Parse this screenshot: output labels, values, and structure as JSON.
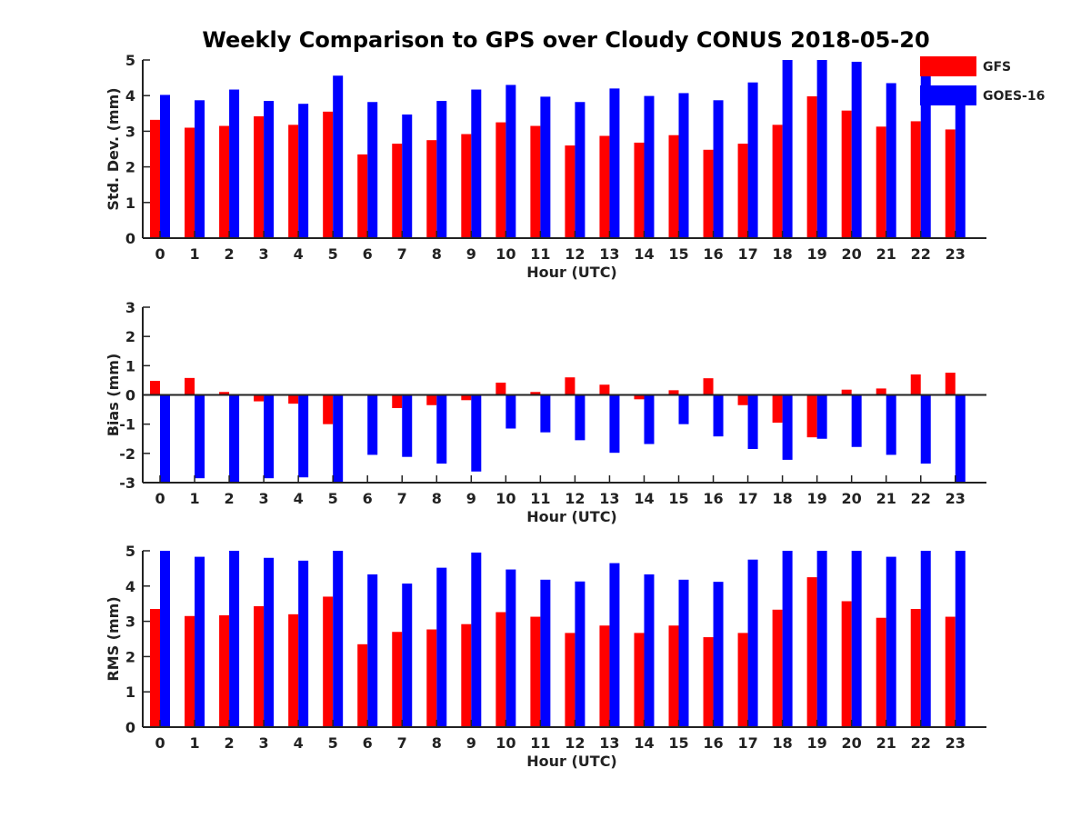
{
  "figure": {
    "title": "Weekly Comparison to GPS over Cloudy CONUS 2018-05-20"
  },
  "legend": {
    "placement": "top-right",
    "items": [
      {
        "label": "GFS",
        "color": "#ff0000"
      },
      {
        "label": "GOES-16",
        "color": "#0000ff"
      }
    ]
  },
  "chart_data": [
    {
      "type": "bar",
      "xlabel": "Hour (UTC)",
      "ylabel": "Std. Dev. (mm)",
      "ylim": [
        0,
        5
      ],
      "yticks": [
        0,
        1,
        2,
        3,
        4,
        5
      ],
      "categories": [
        "0",
        "1",
        "2",
        "3",
        "4",
        "5",
        "6",
        "7",
        "8",
        "9",
        "10",
        "11",
        "12",
        "13",
        "14",
        "15",
        "16",
        "17",
        "18",
        "19",
        "20",
        "21",
        "22",
        "23"
      ],
      "series": [
        {
          "name": "GFS",
          "color": "#ff0000",
          "values": [
            3.32,
            3.1,
            3.15,
            3.42,
            3.18,
            3.55,
            2.35,
            2.65,
            2.75,
            2.92,
            3.25,
            3.15,
            2.6,
            2.87,
            2.68,
            2.89,
            2.48,
            2.65,
            3.18,
            3.98,
            3.58,
            3.13,
            3.28,
            3.05
          ]
        },
        {
          "name": "GOES-16",
          "color": "#0000ff",
          "values": [
            4.02,
            3.87,
            4.17,
            3.85,
            3.77,
            4.56,
            3.82,
            3.47,
            3.85,
            4.17,
            4.3,
            3.97,
            3.82,
            4.2,
            3.99,
            4.07,
            3.87,
            4.37,
            5.0,
            5.0,
            4.95,
            4.35,
            4.6,
            3.8
          ]
        }
      ],
      "grid": false
    },
    {
      "type": "bar",
      "xlabel": "Hour (UTC)",
      "ylabel": "Bias (mm)",
      "ylim": [
        -3,
        3
      ],
      "yticks": [
        -3,
        -2,
        -1,
        0,
        1,
        2,
        3
      ],
      "categories": [
        "0",
        "1",
        "2",
        "3",
        "4",
        "5",
        "6",
        "7",
        "8",
        "9",
        "10",
        "11",
        "12",
        "13",
        "14",
        "15",
        "16",
        "17",
        "18",
        "19",
        "20",
        "21",
        "22",
        "23"
      ],
      "series": [
        {
          "name": "GFS",
          "color": "#ff0000",
          "values": [
            0.48,
            0.58,
            0.1,
            -0.22,
            -0.3,
            -1.0,
            0.0,
            -0.45,
            -0.35,
            -0.18,
            0.42,
            0.1,
            0.6,
            0.35,
            -0.15,
            0.16,
            0.57,
            -0.35,
            -0.95,
            -1.45,
            0.18,
            0.22,
            0.7,
            0.76
          ]
        },
        {
          "name": "GOES-16",
          "color": "#0000ff",
          "values": [
            -3.0,
            -2.85,
            -3.0,
            -2.85,
            -2.82,
            -3.0,
            -2.05,
            -2.12,
            -2.35,
            -2.62,
            -1.15,
            -1.28,
            -1.55,
            -1.98,
            -1.68,
            -1.0,
            -1.42,
            -1.85,
            -2.22,
            -1.5,
            -1.78,
            -2.05,
            -2.35,
            -3.0
          ]
        }
      ],
      "grid": false
    },
    {
      "type": "bar",
      "xlabel": "Hour (UTC)",
      "ylabel": "RMS (mm)",
      "ylim": [
        0,
        5
      ],
      "yticks": [
        0,
        1,
        2,
        3,
        4,
        5
      ],
      "categories": [
        "0",
        "1",
        "2",
        "3",
        "4",
        "5",
        "6",
        "7",
        "8",
        "9",
        "10",
        "11",
        "12",
        "13",
        "14",
        "15",
        "16",
        "17",
        "18",
        "19",
        "20",
        "21",
        "22",
        "23"
      ],
      "series": [
        {
          "name": "GFS",
          "color": "#ff0000",
          "values": [
            3.35,
            3.15,
            3.17,
            3.43,
            3.2,
            3.7,
            2.35,
            2.7,
            2.77,
            2.92,
            3.26,
            3.13,
            2.67,
            2.88,
            2.67,
            2.88,
            2.55,
            2.67,
            3.33,
            4.25,
            3.57,
            3.1,
            3.35,
            3.13
          ]
        },
        {
          "name": "GOES-16",
          "color": "#0000ff",
          "values": [
            5.0,
            4.83,
            5.0,
            4.8,
            4.72,
            5.0,
            4.33,
            4.07,
            4.52,
            4.95,
            4.47,
            4.18,
            4.13,
            4.65,
            4.33,
            4.18,
            4.12,
            4.75,
            5.0,
            5.0,
            5.0,
            4.83,
            5.0,
            5.0
          ]
        }
      ],
      "grid": false
    }
  ]
}
